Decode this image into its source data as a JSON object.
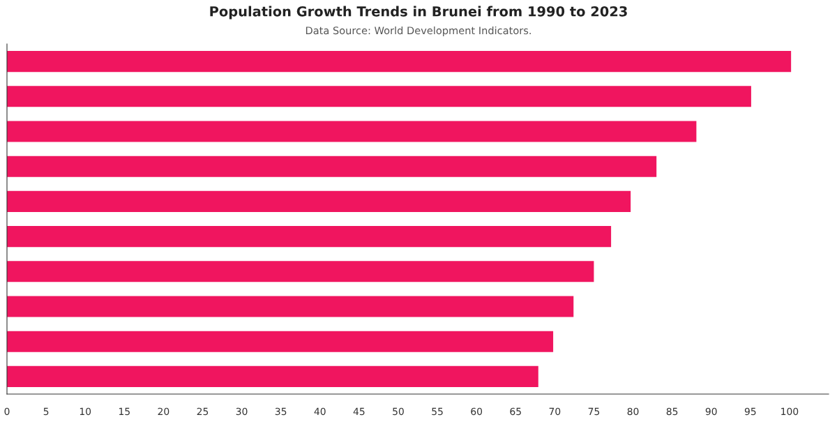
{
  "chart_data": {
    "type": "bar",
    "orientation": "horizontal",
    "title": "Population Growth Trends in Brunei from 1990 to 2023",
    "subtitle": "Data Source: World Development Indicators.",
    "categories": [
      null,
      null,
      null,
      null,
      null,
      null,
      null,
      null,
      null,
      null
    ],
    "values": [
      100.2,
      95.1,
      88.1,
      83.0,
      79.7,
      77.2,
      75.0,
      72.4,
      69.8,
      67.9
    ],
    "color": "#f0155f",
    "xlim": [
      0,
      105
    ],
    "xticks": [
      0,
      5,
      10,
      15,
      20,
      25,
      30,
      35,
      40,
      45,
      50,
      55,
      60,
      65,
      70,
      75,
      80,
      85,
      90,
      95,
      100
    ],
    "grid": false
  }
}
